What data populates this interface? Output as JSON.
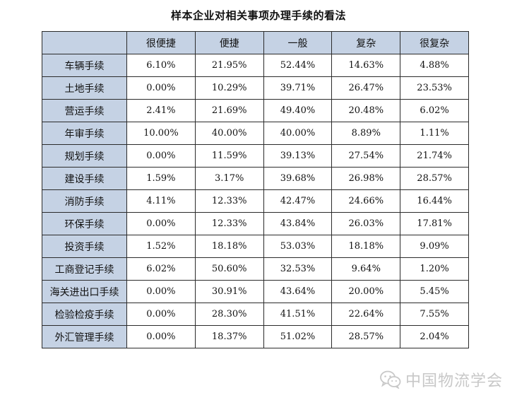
{
  "chart_data": {
    "type": "table",
    "title": "样本企业对相关事项办理手续的看法",
    "corner": "",
    "columns": [
      "很便捷",
      "便捷",
      "一般",
      "复杂",
      "很复杂"
    ],
    "rows": [
      {
        "label": "车辆手续",
        "values": [
          "6.10%",
          "21.95%",
          "52.44%",
          "14.63%",
          "4.88%"
        ]
      },
      {
        "label": "土地手续",
        "values": [
          "0.00%",
          "10.29%",
          "39.71%",
          "26.47%",
          "23.53%"
        ]
      },
      {
        "label": "营运手续",
        "values": [
          "2.41%",
          "21.69%",
          "49.40%",
          "20.48%",
          "6.02%"
        ]
      },
      {
        "label": "年审手续",
        "values": [
          "10.00%",
          "40.00%",
          "40.00%",
          "8.89%",
          "1.11%"
        ]
      },
      {
        "label": "规划手续",
        "values": [
          "0.00%",
          "11.59%",
          "39.13%",
          "27.54%",
          "21.74%"
        ]
      },
      {
        "label": "建设手续",
        "values": [
          "1.59%",
          "3.17%",
          "39.68%",
          "26.98%",
          "28.57%"
        ]
      },
      {
        "label": "消防手续",
        "values": [
          "4.11%",
          "12.33%",
          "42.47%",
          "24.66%",
          "16.44%"
        ]
      },
      {
        "label": "环保手续",
        "values": [
          "0.00%",
          "12.33%",
          "43.84%",
          "26.03%",
          "17.81%"
        ]
      },
      {
        "label": "投资手续",
        "values": [
          "1.52%",
          "18.18%",
          "53.03%",
          "18.18%",
          "9.09%"
        ]
      },
      {
        "label": "工商登记手续",
        "values": [
          "6.02%",
          "50.60%",
          "32.53%",
          "9.64%",
          "1.20%"
        ]
      },
      {
        "label": "海关进出口手续",
        "values": [
          "0.00%",
          "30.91%",
          "43.64%",
          "20.00%",
          "5.45%"
        ]
      },
      {
        "label": "检验检疫手续",
        "values": [
          "0.00%",
          "28.30%",
          "41.51%",
          "22.64%",
          "7.55%"
        ]
      },
      {
        "label": "外汇管理手续",
        "values": [
          "0.00%",
          "18.37%",
          "51.02%",
          "28.57%",
          "2.04%"
        ]
      }
    ]
  },
  "watermark": {
    "text": "中国物流学会",
    "icon": "wechat-icon"
  },
  "colors": {
    "header_bg": "#c5d2e4",
    "border": "#2b2b2b",
    "watermark": "#c8c8c8"
  }
}
